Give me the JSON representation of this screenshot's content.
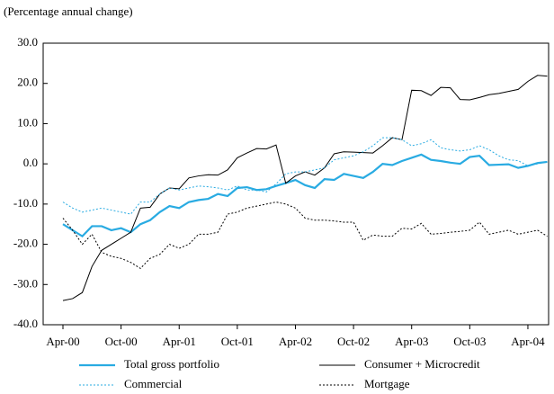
{
  "chart_data": {
    "type": "line",
    "subtitle": "(Percentage annual change)",
    "categories": [
      "Apr-00",
      null,
      null,
      null,
      null,
      null,
      "Oct-00",
      null,
      null,
      null,
      null,
      null,
      "Apr-01",
      null,
      null,
      null,
      null,
      null,
      "Oct-01",
      null,
      null,
      null,
      null,
      null,
      "Apr-02",
      null,
      null,
      null,
      null,
      null,
      "Oct-02",
      null,
      null,
      null,
      null,
      null,
      "Apr-03",
      null,
      null,
      null,
      null,
      null,
      "Oct-03",
      null,
      null,
      null,
      null,
      null,
      "Apr-04",
      null,
      null
    ],
    "ylim": [
      -40,
      30
    ],
    "yticks": [
      {
        "value": -40,
        "label": "-40.0"
      },
      {
        "value": -30,
        "label": "-30.0"
      },
      {
        "value": -20,
        "label": "-20.0"
      },
      {
        "value": -10,
        "label": "-10.0"
      },
      {
        "value": 0,
        "label": "0.0"
      },
      {
        "value": 10,
        "label": "10.0"
      },
      {
        "value": 20,
        "label": "20.0"
      },
      {
        "value": 30,
        "label": "30.0"
      }
    ],
    "grid": false,
    "series": [
      {
        "name": "Total gross portfolio",
        "color": "#29abe2",
        "width": 2.2,
        "dash": "solid",
        "values": [
          -15,
          -16.5,
          -18,
          -15.5,
          -15.5,
          -16.5,
          -16,
          -17,
          -15,
          -14,
          -12,
          -10.5,
          -11,
          -9.5,
          -9,
          -8.7,
          -7.5,
          -8,
          -6,
          -5.8,
          -6.5,
          -6.3,
          -5.5,
          -4.8,
          -4,
          -5.3,
          -6,
          -3.8,
          -4,
          -2.5,
          -3,
          -3.5,
          -2,
          0,
          -0.3,
          0.7,
          1.5,
          2.3,
          1,
          0.7,
          0.3,
          0,
          1.7,
          2,
          -0.3,
          -0.2,
          -0.1,
          -1,
          -0.5,
          0.2,
          0.5
        ]
      },
      {
        "name": "Consumer + Microcredit",
        "color": "#000000",
        "width": 1,
        "dash": "solid",
        "values": [
          -34,
          -33.5,
          -32,
          -25.5,
          -21.5,
          -20,
          -18.5,
          -17,
          -11,
          -10.8,
          -7.5,
          -6,
          -6.2,
          -3.5,
          -3,
          -2.7,
          -2.8,
          -1.5,
          1.5,
          2.7,
          3.8,
          3.7,
          4.7,
          -4.8,
          -3,
          -2,
          -2.8,
          -1,
          2.5,
          3,
          2.9,
          2.8,
          2.7,
          4.5,
          6.5,
          6,
          18.3,
          18.2,
          17,
          19,
          18.9,
          16,
          15.9,
          16.5,
          17.2,
          17.5,
          18,
          18.5,
          20.5,
          22,
          21.8
        ]
      },
      {
        "name": "Commercial",
        "color": "#29abe2",
        "width": 1,
        "dash": "dotted",
        "values": [
          -9.5,
          -11,
          -12,
          -11.5,
          -11,
          -11.5,
          -12,
          -12.5,
          -9.5,
          -9.5,
          -7.5,
          -6,
          -6.5,
          -6,
          -5.5,
          -5.7,
          -6,
          -6.5,
          -5.5,
          -6.5,
          -6.5,
          -7,
          -5,
          -2.5,
          -2,
          -2,
          -1.5,
          -1,
          1,
          1.5,
          2,
          3,
          4.5,
          6.5,
          6.5,
          6,
          4.5,
          5,
          6,
          4,
          3.5,
          3.2,
          3.5,
          4.5,
          3.5,
          2,
          1,
          0.8,
          -0.5,
          0,
          0.5
        ]
      },
      {
        "name": "Mortgage",
        "color": "#000000",
        "width": 1,
        "dash": "dotted",
        "values": [
          -13.5,
          -16.5,
          -20,
          -17.5,
          -22,
          -23,
          -23.5,
          -24.5,
          -26,
          -23.5,
          -22.5,
          -20,
          -21,
          -20,
          -17.5,
          -17.5,
          -17,
          -12.5,
          -12,
          -11,
          -10.5,
          -10,
          -9.5,
          -10,
          -11,
          -13.5,
          -14,
          -14,
          -14.2,
          -14.5,
          -14.5,
          -19,
          -17.7,
          -18,
          -18,
          -16,
          -16.2,
          -14.8,
          -17.5,
          -17.3,
          -17,
          -16.8,
          -16.5,
          -14.5,
          -17.5,
          -17,
          -16.5,
          -17.5,
          -17,
          -16.5,
          -18
        ]
      }
    ]
  }
}
